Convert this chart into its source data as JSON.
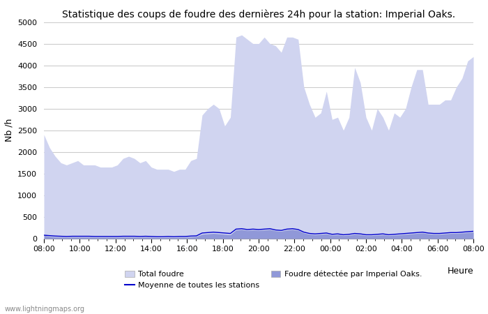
{
  "title": "Statistique des coups de foudre des dernières 24h pour la station: Imperial Oaks.",
  "xlabel": "Heure",
  "ylabel": "Nb /h",
  "ylim": [
    0,
    5000
  ],
  "yticks": [
    0,
    500,
    1000,
    1500,
    2000,
    2500,
    3000,
    3500,
    4000,
    4500,
    5000
  ],
  "xtick_labels": [
    "08:00",
    "10:00",
    "12:00",
    "14:00",
    "16:00",
    "18:00",
    "20:00",
    "22:00",
    "00:00",
    "02:00",
    "04:00",
    "06:00",
    "08:00"
  ],
  "background_color": "#ffffff",
  "plot_bg_color": "#ffffff",
  "grid_color": "#cccccc",
  "fill_total_color": "#d0d4f0",
  "fill_detected_color": "#9098d8",
  "line_mean_color": "#0000cc",
  "watermark": "www.lightningmaps.org",
  "legend_labels": [
    "Total foudre",
    "Moyenne de toutes les stations",
    "Foudre détectée par Imperial Oaks."
  ],
  "total_foudre": [
    2400,
    2100,
    1900,
    1750,
    1700,
    1750,
    1800,
    1700,
    1700,
    1700,
    1650,
    1650,
    1650,
    1700,
    1850,
    1900,
    1850,
    1750,
    1800,
    1650,
    1600,
    1600,
    1600,
    1550,
    1600,
    1600,
    1800,
    1850,
    2850,
    3000,
    3100,
    3000,
    2600,
    2800,
    4650,
    4700,
    4600,
    4500,
    4500,
    4650,
    4500,
    4450,
    4300,
    4650,
    4650,
    4600,
    3500,
    3100,
    2800,
    2900,
    3400,
    2750,
    2800,
    2500,
    2800,
    3950,
    3600,
    2800,
    2500,
    3000,
    2800,
    2500,
    2900,
    2800,
    3000,
    3500,
    3900,
    3900,
    3100,
    3100,
    3100,
    3200,
    3200,
    3500,
    3700,
    4100,
    4200
  ],
  "detected_foudre": [
    80,
    50,
    40,
    35,
    30,
    35,
    35,
    35,
    35,
    30,
    30,
    30,
    30,
    30,
    35,
    35,
    35,
    30,
    35,
    30,
    25,
    25,
    30,
    25,
    30,
    30,
    40,
    50,
    100,
    110,
    120,
    110,
    100,
    90,
    200,
    210,
    190,
    200,
    190,
    200,
    210,
    180,
    170,
    200,
    210,
    190,
    130,
    100,
    90,
    100,
    110,
    80,
    90,
    70,
    80,
    100,
    90,
    70,
    70,
    80,
    90,
    70,
    80,
    90,
    100,
    110,
    120,
    130,
    110,
    100,
    100,
    110,
    120,
    120,
    130,
    140,
    150
  ],
  "mean_stations": [
    80,
    70,
    60,
    55,
    50,
    55,
    55,
    55,
    55,
    50,
    50,
    50,
    50,
    50,
    55,
    55,
    55,
    50,
    55,
    50,
    45,
    45,
    50,
    45,
    50,
    50,
    60,
    65,
    130,
    140,
    150,
    140,
    130,
    120,
    220,
    230,
    210,
    220,
    210,
    220,
    230,
    200,
    190,
    220,
    230,
    210,
    150,
    120,
    110,
    120,
    130,
    100,
    110,
    90,
    100,
    120,
    110,
    90,
    90,
    100,
    110,
    90,
    100,
    110,
    120,
    130,
    140,
    150,
    130,
    120,
    120,
    130,
    140,
    140,
    150,
    160,
    170
  ]
}
